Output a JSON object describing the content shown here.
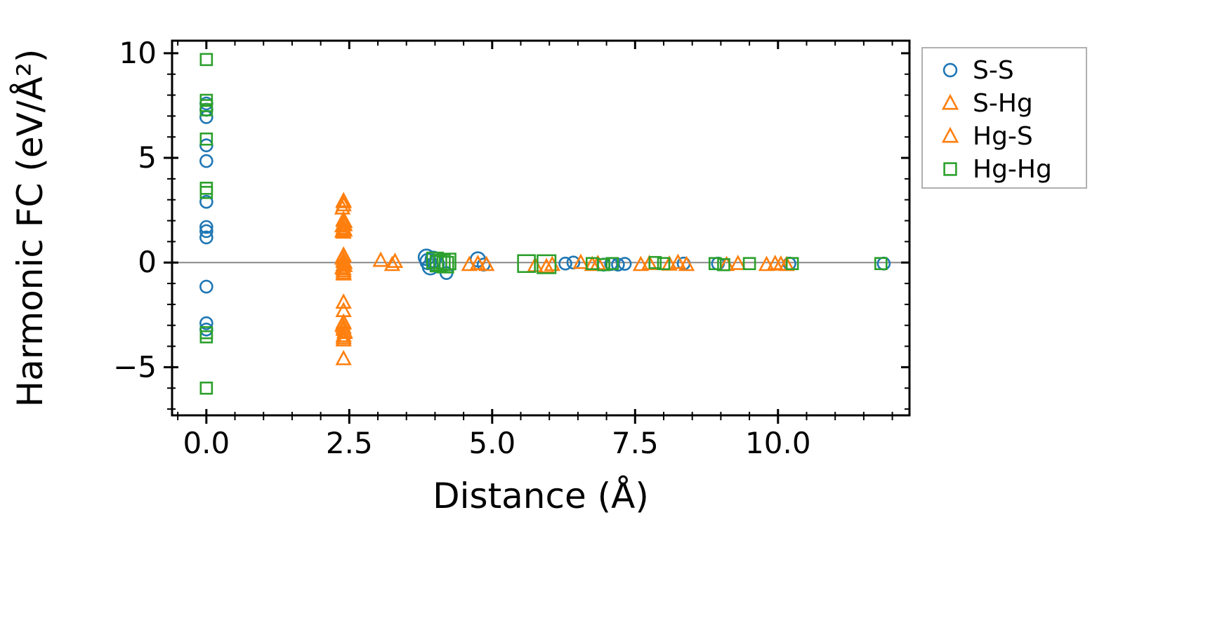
{
  "colors": {
    "series_blue": "#1f77b4",
    "series_orange": "#ff7f0e",
    "series_green": "#2ca02c",
    "axis": "#000000",
    "zero_line": "#888888",
    "legend_border": "#b0b0b0",
    "background": "#ffffff"
  },
  "chart_data": {
    "type": "scatter",
    "title": "",
    "xlabel": "Distance (Å)",
    "ylabel": "Harmonic FC (eV/Å²)",
    "xlim": [
      -0.6,
      12.3
    ],
    "ylim": [
      -7.3,
      10.6
    ],
    "grid": false,
    "legend_position": "outside-top-right",
    "x_major_ticks": [
      0.0,
      2.5,
      5.0,
      7.5,
      10.0
    ],
    "x_tick_labels": [
      "0.0",
      "2.5",
      "5.0",
      "7.5",
      "10.0"
    ],
    "x_minor_step": 0.5,
    "y_major_ticks": [
      -5,
      0,
      5,
      10
    ],
    "y_tick_labels": [
      "−5",
      "0",
      "5",
      "10"
    ],
    "y_minor_step": 1,
    "zero_line": {
      "y": 0,
      "color": "#888888"
    },
    "series": [
      {
        "name": "S-S",
        "marker": "circle",
        "color": "#1f77b4",
        "points": [
          [
            0,
            7.6
          ],
          [
            0,
            7.3
          ],
          [
            0,
            6.95
          ],
          [
            0,
            5.6
          ],
          [
            0,
            4.85
          ],
          [
            0,
            2.9
          ],
          [
            0,
            1.7
          ],
          [
            0,
            1.5
          ],
          [
            0,
            1.2
          ],
          [
            0,
            -1.15
          ],
          [
            0,
            -2.9
          ],
          [
            0,
            -3.2
          ],
          [
            3.85,
            0.25,
            1.3
          ],
          [
            3.88,
            0.05,
            1.3
          ],
          [
            3.92,
            -0.2,
            1.3
          ],
          [
            3.97,
            0.15,
            1.3
          ],
          [
            4.02,
            -0.05,
            1.3
          ],
          [
            4.2,
            -0.5
          ],
          [
            4.75,
            0.15,
            1.2
          ],
          [
            4.85,
            -0.1
          ],
          [
            6.28,
            -0.05
          ],
          [
            6.42,
            0
          ],
          [
            6.95,
            -0.1
          ],
          [
            7.08,
            -0.07
          ],
          [
            7.2,
            -0.1
          ],
          [
            7.32,
            -0.06
          ],
          [
            8.35,
            -0.05
          ],
          [
            8.95,
            -0.05
          ],
          [
            10.2,
            -0.05
          ],
          [
            11.85,
            -0.05
          ]
        ]
      },
      {
        "name": "S-Hg",
        "marker": "triangle",
        "color": "#ff7f0e",
        "points": [
          [
            2.4,
            2.95
          ],
          [
            2.4,
            2.75
          ],
          [
            2.38,
            2.6
          ],
          [
            2.4,
            2.05
          ],
          [
            2.42,
            1.95
          ],
          [
            2.4,
            1.85
          ],
          [
            2.38,
            1.75
          ],
          [
            2.4,
            1.65
          ],
          [
            2.42,
            1.55
          ],
          [
            2.4,
            1.45
          ],
          [
            2.4,
            0.35
          ],
          [
            2.38,
            0.2
          ],
          [
            2.4,
            0.1
          ],
          [
            2.42,
            0
          ],
          [
            2.4,
            -0.1
          ],
          [
            2.38,
            -0.25
          ],
          [
            2.4,
            -0.4
          ],
          [
            2.4,
            -0.55
          ],
          [
            2.4,
            -1.9
          ],
          [
            2.4,
            -2.3
          ],
          [
            2.4,
            -2.85
          ],
          [
            2.38,
            -3.0
          ],
          [
            2.4,
            -3.2
          ],
          [
            2.42,
            -3.35
          ],
          [
            2.4,
            -3.5
          ],
          [
            2.4,
            -3.7
          ],
          [
            2.4,
            -4.6
          ],
          [
            3.05,
            0.1
          ],
          [
            3.25,
            -0.1
          ],
          [
            4.6,
            -0.1
          ],
          [
            4.75,
            -0.05
          ],
          [
            5.75,
            -0.15
          ],
          [
            5.95,
            -0.2
          ],
          [
            6.55,
            0
          ],
          [
            6.75,
            -0.1
          ],
          [
            7.6,
            -0.1
          ],
          [
            8.1,
            -0.08
          ],
          [
            8.4,
            -0.1
          ],
          [
            9.1,
            -0.1
          ],
          [
            9.8,
            -0.1
          ],
          [
            10.05,
            -0.08
          ]
        ]
      },
      {
        "name": "Hg-S",
        "marker": "triangle",
        "color": "#ff7f0e",
        "points": [
          [
            2.4,
            2.9
          ],
          [
            2.4,
            2.0
          ],
          [
            2.42,
            1.8
          ],
          [
            2.4,
            1.6
          ],
          [
            2.38,
            1.5
          ],
          [
            2.4,
            0.3
          ],
          [
            2.4,
            0.05
          ],
          [
            2.42,
            -0.15
          ],
          [
            2.4,
            -0.3
          ],
          [
            2.4,
            -0.5
          ],
          [
            2.4,
            -2.9
          ],
          [
            2.4,
            -3.1
          ],
          [
            2.42,
            -3.3
          ],
          [
            2.4,
            -3.6
          ],
          [
            3.3,
            0.05
          ],
          [
            4.9,
            -0.1
          ],
          [
            6.05,
            -0.1
          ],
          [
            6.85,
            -0.05
          ],
          [
            7.75,
            -0.05
          ],
          [
            8.25,
            0
          ],
          [
            9.3,
            -0.05
          ],
          [
            9.95,
            -0.05
          ],
          [
            10.15,
            -0.1
          ]
        ]
      },
      {
        "name": "Hg-Hg",
        "marker": "square",
        "color": "#2ca02c",
        "points": [
          [
            0,
            9.7
          ],
          [
            0,
            7.75
          ],
          [
            0,
            7.5
          ],
          [
            0,
            7.3
          ],
          [
            0,
            5.9
          ],
          [
            0,
            3.55
          ],
          [
            0,
            3.35
          ],
          [
            0,
            -3.35
          ],
          [
            0,
            -3.55
          ],
          [
            0,
            -6.0
          ],
          [
            4.0,
            0.1,
            1.4
          ],
          [
            4.06,
            -0.05,
            1.4
          ],
          [
            4.12,
            0,
            1.4
          ],
          [
            4.18,
            -0.1,
            1.4
          ],
          [
            4.22,
            0.05,
            1.4
          ],
          [
            5.6,
            -0.05,
            1.5
          ],
          [
            5.95,
            -0.08,
            1.6
          ],
          [
            6.75,
            -0.05
          ],
          [
            6.95,
            -0.1
          ],
          [
            7.1,
            -0.05
          ],
          [
            7.85,
            0
          ],
          [
            8.0,
            -0.05
          ],
          [
            8.9,
            -0.05
          ],
          [
            9.05,
            -0.1
          ],
          [
            9.5,
            -0.05
          ],
          [
            10.25,
            -0.05
          ],
          [
            11.8,
            -0.05
          ]
        ]
      }
    ]
  }
}
